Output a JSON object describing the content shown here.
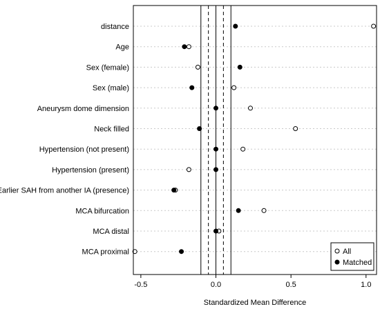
{
  "chart_data": {
    "type": "scatter",
    "title": "",
    "xlabel": "Standardized Mean Difference",
    "ylabel": "",
    "xlim": [
      -0.55,
      1.07
    ],
    "xticks": [
      -0.5,
      0.0,
      0.5,
      1.0
    ],
    "xtick_labels": [
      "-0.5",
      "0.0",
      "0.5",
      "1.0"
    ],
    "grid": "horizontal dotted",
    "legend_position": "bottom-right",
    "solid_lines": [
      -0.1,
      0.0,
      0.1
    ],
    "dashed_lines": [
      -0.05,
      0.05
    ],
    "categories": [
      "distance",
      "Age",
      "Sex (female)",
      "Sex (male)",
      "Aneurysm dome dimension",
      "Neck filled",
      "Hypertension (not present)",
      "Hypertension (present)",
      "Earlier SAH from another IA (presence)",
      "MCA bifurcation",
      "MCA distal",
      "MCA proximal"
    ],
    "series": [
      {
        "name": "All",
        "marker": "open-circle",
        "values": [
          1.05,
          -0.18,
          -0.12,
          0.12,
          0.23,
          0.53,
          0.18,
          -0.18,
          -0.27,
          0.32,
          0.02,
          -0.54
        ]
      },
      {
        "name": "Matched",
        "marker": "filled-circle",
        "values": [
          0.13,
          -0.21,
          0.16,
          -0.16,
          0.0,
          -0.11,
          0.0,
          0.0,
          -0.28,
          0.15,
          0.0,
          -0.23
        ]
      }
    ]
  }
}
